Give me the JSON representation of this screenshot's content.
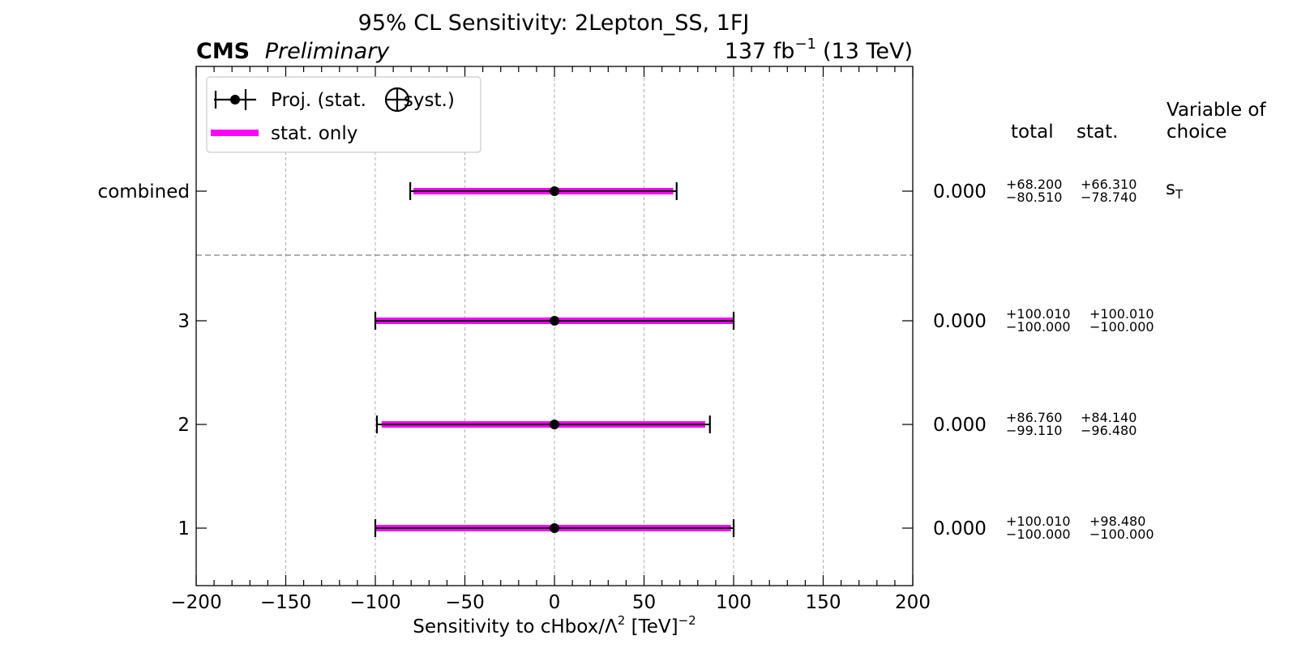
{
  "header": {
    "title": "95% CL Sensitivity: 2Lepton_SS, 1FJ",
    "experiment": "CMS",
    "status": "Preliminary",
    "lumi_value": "137 fb",
    "lumi_exponent": "−1",
    "energy": "(13 TeV)"
  },
  "legend": {
    "proj_label_a": "Proj. (stat.",
    "proj_label_b": "syst.)",
    "stat_label": "stat. only"
  },
  "table": {
    "col_total": "total",
    "col_stat": "stat.",
    "col_var_line1": "Variable of",
    "col_var_line2": "choice",
    "combined_variable": "s",
    "combined_variable_sub": "T"
  },
  "colors": {
    "stat_only": "#ff00ff",
    "total": "#000000",
    "grid": "#b0b0b0",
    "separator": "#808080"
  },
  "chart_data": {
    "type": "errorbar",
    "title": "95% CL Sensitivity: 2Lepton_SS, 1FJ",
    "xlabel_prefix": "Sensitivity to cHbox/Λ",
    "xlabel_exp": "2",
    "xlabel_unit": " [TeV]",
    "xlabel_unit_exp": "−2",
    "xlim": [
      -200,
      200
    ],
    "xticks": [
      -200,
      -150,
      -100,
      -50,
      0,
      50,
      100,
      150,
      200
    ],
    "xtick_labels": [
      "−200",
      "−150",
      "−100",
      "−50",
      "0",
      "50",
      "100",
      "150",
      "200"
    ],
    "grid": true,
    "legend_position": "top-left",
    "rows": [
      {
        "label": "combined",
        "central": 0.0,
        "central_text": "0.000",
        "total_up": 68.2,
        "total_down": 80.51,
        "stat_up": 66.31,
        "stat_down": 78.74,
        "total_up_text": "+68.200",
        "total_down_text": "−80.510",
        "stat_up_text": "+66.310",
        "stat_down_text": "−78.740"
      },
      {
        "label": "3",
        "central": 0.0,
        "central_text": "0.000",
        "total_up": 100.01,
        "total_down": 100.0,
        "stat_up": 100.01,
        "stat_down": 100.0,
        "total_up_text": "+100.010",
        "total_down_text": "−100.000",
        "stat_up_text": "+100.010",
        "stat_down_text": "−100.000"
      },
      {
        "label": "2",
        "central": 0.0,
        "central_text": "0.000",
        "total_up": 86.76,
        "total_down": 99.11,
        "stat_up": 84.14,
        "stat_down": 96.48,
        "total_up_text": "+86.760",
        "total_down_text": "−99.110",
        "stat_up_text": "+84.140",
        "stat_down_text": "−96.480"
      },
      {
        "label": "1",
        "central": 0.0,
        "central_text": "0.000",
        "total_up": 100.01,
        "total_down": 100.0,
        "stat_up": 98.48,
        "stat_down": 100.0,
        "total_up_text": "+100.010",
        "total_down_text": "−100.000",
        "stat_up_text": "+98.480",
        "stat_down_text": "−100.000"
      }
    ]
  }
}
